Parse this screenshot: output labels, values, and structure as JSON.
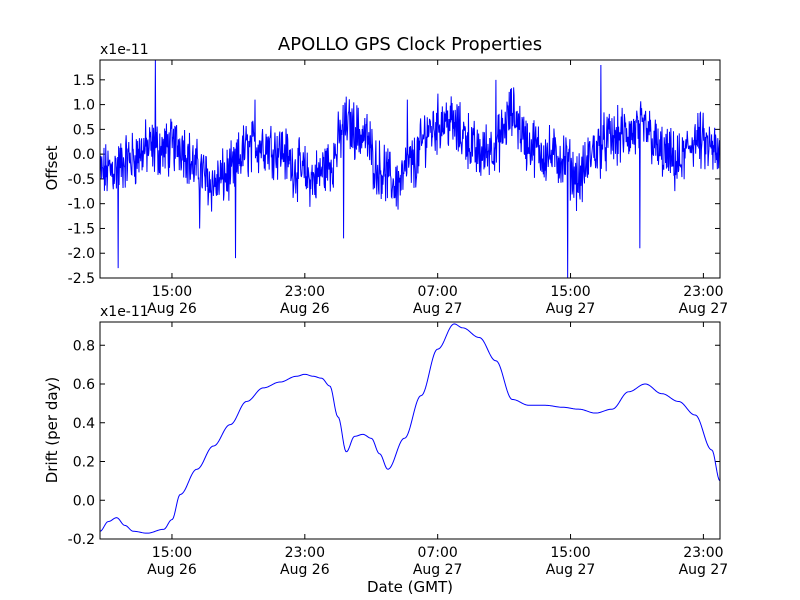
{
  "chart_data": {
    "title": "APOLLO GPS Clock Properties",
    "xlabel": "Date (GMT)",
    "x_range": [
      "Aug 26 10:40",
      "Aug 28 00:00"
    ],
    "x_ticks": [
      {
        "x": "Aug 26 15:00",
        "time": "15:00",
        "date": "Aug 26"
      },
      {
        "x": "Aug 26 23:00",
        "time": "23:00",
        "date": "Aug 26"
      },
      {
        "x": "Aug 27 07:00",
        "time": "07:00",
        "date": "Aug 27"
      },
      {
        "x": "Aug 27 15:00",
        "time": "15:00",
        "date": "Aug 27"
      },
      {
        "x": "Aug 27 23:00",
        "time": "23:00",
        "date": "Aug 27"
      }
    ],
    "grid": false,
    "line_color": "#0000ff",
    "panels": [
      {
        "type": "line",
        "ylabel": "Offset",
        "scale_label": "x1e-11",
        "ylim": [
          -2.5,
          1.9
        ],
        "yticks": [
          "1.5",
          "1.0",
          "0.5",
          "0.0",
          "-0.5",
          "-1.0",
          "-1.5",
          "-2.0",
          "-2.5"
        ],
        "noisy": true,
        "series": [
          {
            "x": [
              "Aug 26 10:40",
              "Aug 26 11:30",
              "Aug 26 12:30",
              "Aug 26 13:30",
              "Aug 26 14:30",
              "Aug 26 15:30",
              "Aug 26 16:30",
              "Aug 26 17:30",
              "Aug 26 18:30",
              "Aug 26 19:30",
              "Aug 26 20:30",
              "Aug 26 21:30",
              "Aug 26 22:30",
              "Aug 26 23:30",
              "Aug 27 00:30",
              "Aug 27 01:30",
              "Aug 27 02:30",
              "Aug 27 03:30",
              "Aug 27 04:30",
              "Aug 27 05:30",
              "Aug 27 06:30",
              "Aug 27 07:30",
              "Aug 27 08:30",
              "Aug 27 09:30",
              "Aug 27 10:30",
              "Aug 27 11:30",
              "Aug 27 12:30",
              "Aug 27 13:30",
              "Aug 27 14:30",
              "Aug 27 15:30",
              "Aug 27 16:30",
              "Aug 27 17:30",
              "Aug 27 18:30",
              "Aug 27 19:30",
              "Aug 27 20:30",
              "Aug 27 21:30",
              "Aug 27 22:30",
              "Aug 27 23:30",
              "Aug 28 00:00"
            ],
            "y": [
              -0.4,
              -0.3,
              -0.1,
              0.1,
              0.1,
              0.2,
              -0.3,
              -0.6,
              -0.4,
              0.1,
              0.2,
              0.1,
              -0.3,
              -0.5,
              -0.2,
              0.6,
              0.4,
              -0.3,
              -0.6,
              -0.2,
              0.5,
              0.7,
              0.4,
              0.0,
              0.2,
              0.8,
              0.2,
              0.0,
              -0.1,
              -0.5,
              0.1,
              0.3,
              0.4,
              0.5,
              0.0,
              -0.2,
              0.3,
              0.1,
              -0.1
            ]
          }
        ],
        "spikes": [
          {
            "x": "Aug 26 11:45",
            "y": -2.3
          },
          {
            "x": "Aug 26 14:00",
            "y": 1.9
          },
          {
            "x": "Aug 26 16:40",
            "y": -1.5
          },
          {
            "x": "Aug 26 18:50",
            "y": -2.1
          },
          {
            "x": "Aug 26 20:00",
            "y": 1.1
          },
          {
            "x": "Aug 27 01:20",
            "y": -1.7
          },
          {
            "x": "Aug 27 05:10",
            "y": 1.1
          },
          {
            "x": "Aug 27 10:30",
            "y": 1.5
          },
          {
            "x": "Aug 27 14:50",
            "y": -2.5
          },
          {
            "x": "Aug 27 16:50",
            "y": 1.8
          },
          {
            "x": "Aug 27 19:10",
            "y": -1.9
          }
        ]
      },
      {
        "type": "line",
        "ylabel": "Drift (per day)",
        "scale_label": "x1e-11",
        "ylim": [
          -0.2,
          0.92
        ],
        "yticks": [
          "0.8",
          "0.6",
          "0.4",
          "0.2",
          "0.0",
          "-0.2"
        ],
        "noisy": false,
        "series": [
          {
            "x": [
              "Aug 26 10:40",
              "Aug 26 11:10",
              "Aug 26 11:40",
              "Aug 26 12:10",
              "Aug 26 12:40",
              "Aug 26 13:30",
              "Aug 26 14:30",
              "Aug 26 15:00",
              "Aug 26 15:30",
              "Aug 26 16:30",
              "Aug 26 17:30",
              "Aug 26 18:30",
              "Aug 26 19:30",
              "Aug 26 20:30",
              "Aug 26 21:30",
              "Aug 26 22:30",
              "Aug 26 23:00",
              "Aug 26 23:30",
              "Aug 27 00:00",
              "Aug 27 00:30",
              "Aug 27 01:00",
              "Aug 27 01:30",
              "Aug 27 02:00",
              "Aug 27 02:30",
              "Aug 27 03:00",
              "Aug 27 03:30",
              "Aug 27 04:00",
              "Aug 27 05:00",
              "Aug 27 06:00",
              "Aug 27 07:00",
              "Aug 27 08:00",
              "Aug 27 08:30",
              "Aug 27 09:30",
              "Aug 27 10:30",
              "Aug 27 11:30",
              "Aug 27 12:30",
              "Aug 27 13:30",
              "Aug 27 14:30",
              "Aug 27 15:30",
              "Aug 27 16:30",
              "Aug 27 17:30",
              "Aug 27 18:30",
              "Aug 27 19:30",
              "Aug 27 20:30",
              "Aug 27 21:30",
              "Aug 27 22:30",
              "Aug 27 23:30",
              "Aug 28 00:00"
            ],
            "y": [
              -0.16,
              -0.11,
              -0.09,
              -0.13,
              -0.16,
              -0.17,
              -0.15,
              -0.1,
              0.03,
              0.16,
              0.28,
              0.39,
              0.51,
              0.58,
              0.61,
              0.64,
              0.65,
              0.64,
              0.63,
              0.59,
              0.43,
              0.25,
              0.33,
              0.34,
              0.32,
              0.24,
              0.16,
              0.32,
              0.54,
              0.78,
              0.91,
              0.89,
              0.84,
              0.72,
              0.52,
              0.49,
              0.49,
              0.48,
              0.47,
              0.45,
              0.47,
              0.56,
              0.6,
              0.55,
              0.51,
              0.44,
              0.26,
              0.1
            ]
          }
        ]
      }
    ]
  }
}
